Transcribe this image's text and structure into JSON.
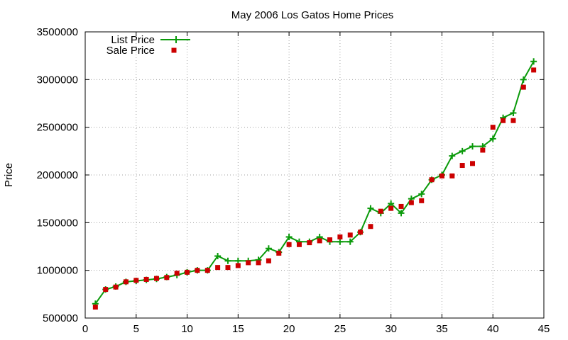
{
  "chart_data": {
    "type": "line",
    "title": "May 2006 Los Gatos Home Prices",
    "xlabel": "",
    "ylabel": "Price",
    "xlim": [
      0,
      45
    ],
    "ylim": [
      500000,
      3500000
    ],
    "xticks": [
      0,
      5,
      10,
      15,
      20,
      25,
      30,
      35,
      40,
      45
    ],
    "yticks": [
      500000,
      1000000,
      1500000,
      2000000,
      2500000,
      3000000,
      3500000
    ],
    "grid": true,
    "legend_position": "top-left",
    "series": [
      {
        "name": "List Price",
        "style": "line-with-plus-markers",
        "color": "#0a9a0a",
        "x": [
          1,
          2,
          3,
          4,
          5,
          6,
          7,
          8,
          9,
          10,
          11,
          12,
          13,
          14,
          15,
          16,
          17,
          18,
          19,
          20,
          21,
          22,
          23,
          24,
          25,
          26,
          27,
          28,
          29,
          30,
          31,
          32,
          33,
          34,
          35,
          36,
          37,
          38,
          39,
          40,
          41,
          42,
          43,
          44
        ],
        "y": [
          650000,
          800000,
          830000,
          880000,
          890000,
          900000,
          910000,
          930000,
          950000,
          980000,
          1000000,
          1000000,
          1150000,
          1100000,
          1100000,
          1100000,
          1110000,
          1230000,
          1190000,
          1350000,
          1300000,
          1300000,
          1350000,
          1300000,
          1300000,
          1300000,
          1400000,
          1650000,
          1600000,
          1700000,
          1600000,
          1750000,
          1800000,
          1950000,
          2000000,
          2200000,
          2250000,
          2300000,
          2300000,
          2380000,
          2600000,
          2650000,
          3000000,
          3190000
        ]
      },
      {
        "name": "Sale Price",
        "style": "square-markers",
        "color": "#cc0000",
        "x": [
          1,
          2,
          3,
          4,
          5,
          6,
          7,
          8,
          9,
          10,
          11,
          12,
          13,
          14,
          15,
          16,
          17,
          18,
          19,
          20,
          21,
          22,
          23,
          24,
          25,
          26,
          27,
          28,
          29,
          30,
          31,
          32,
          33,
          34,
          35,
          36,
          37,
          38,
          39,
          40,
          41,
          42,
          43,
          44
        ],
        "y": [
          615000,
          800000,
          825000,
          880000,
          895000,
          905000,
          915000,
          925000,
          970000,
          980000,
          1000000,
          1000000,
          1030000,
          1030000,
          1050000,
          1080000,
          1080000,
          1100000,
          1180000,
          1270000,
          1270000,
          1290000,
          1310000,
          1320000,
          1350000,
          1370000,
          1400000,
          1460000,
          1620000,
          1650000,
          1670000,
          1710000,
          1730000,
          1950000,
          1990000,
          1990000,
          2100000,
          2120000,
          2260000,
          2500000,
          2570000,
          2570000,
          2920000,
          3100000
        ]
      }
    ]
  }
}
